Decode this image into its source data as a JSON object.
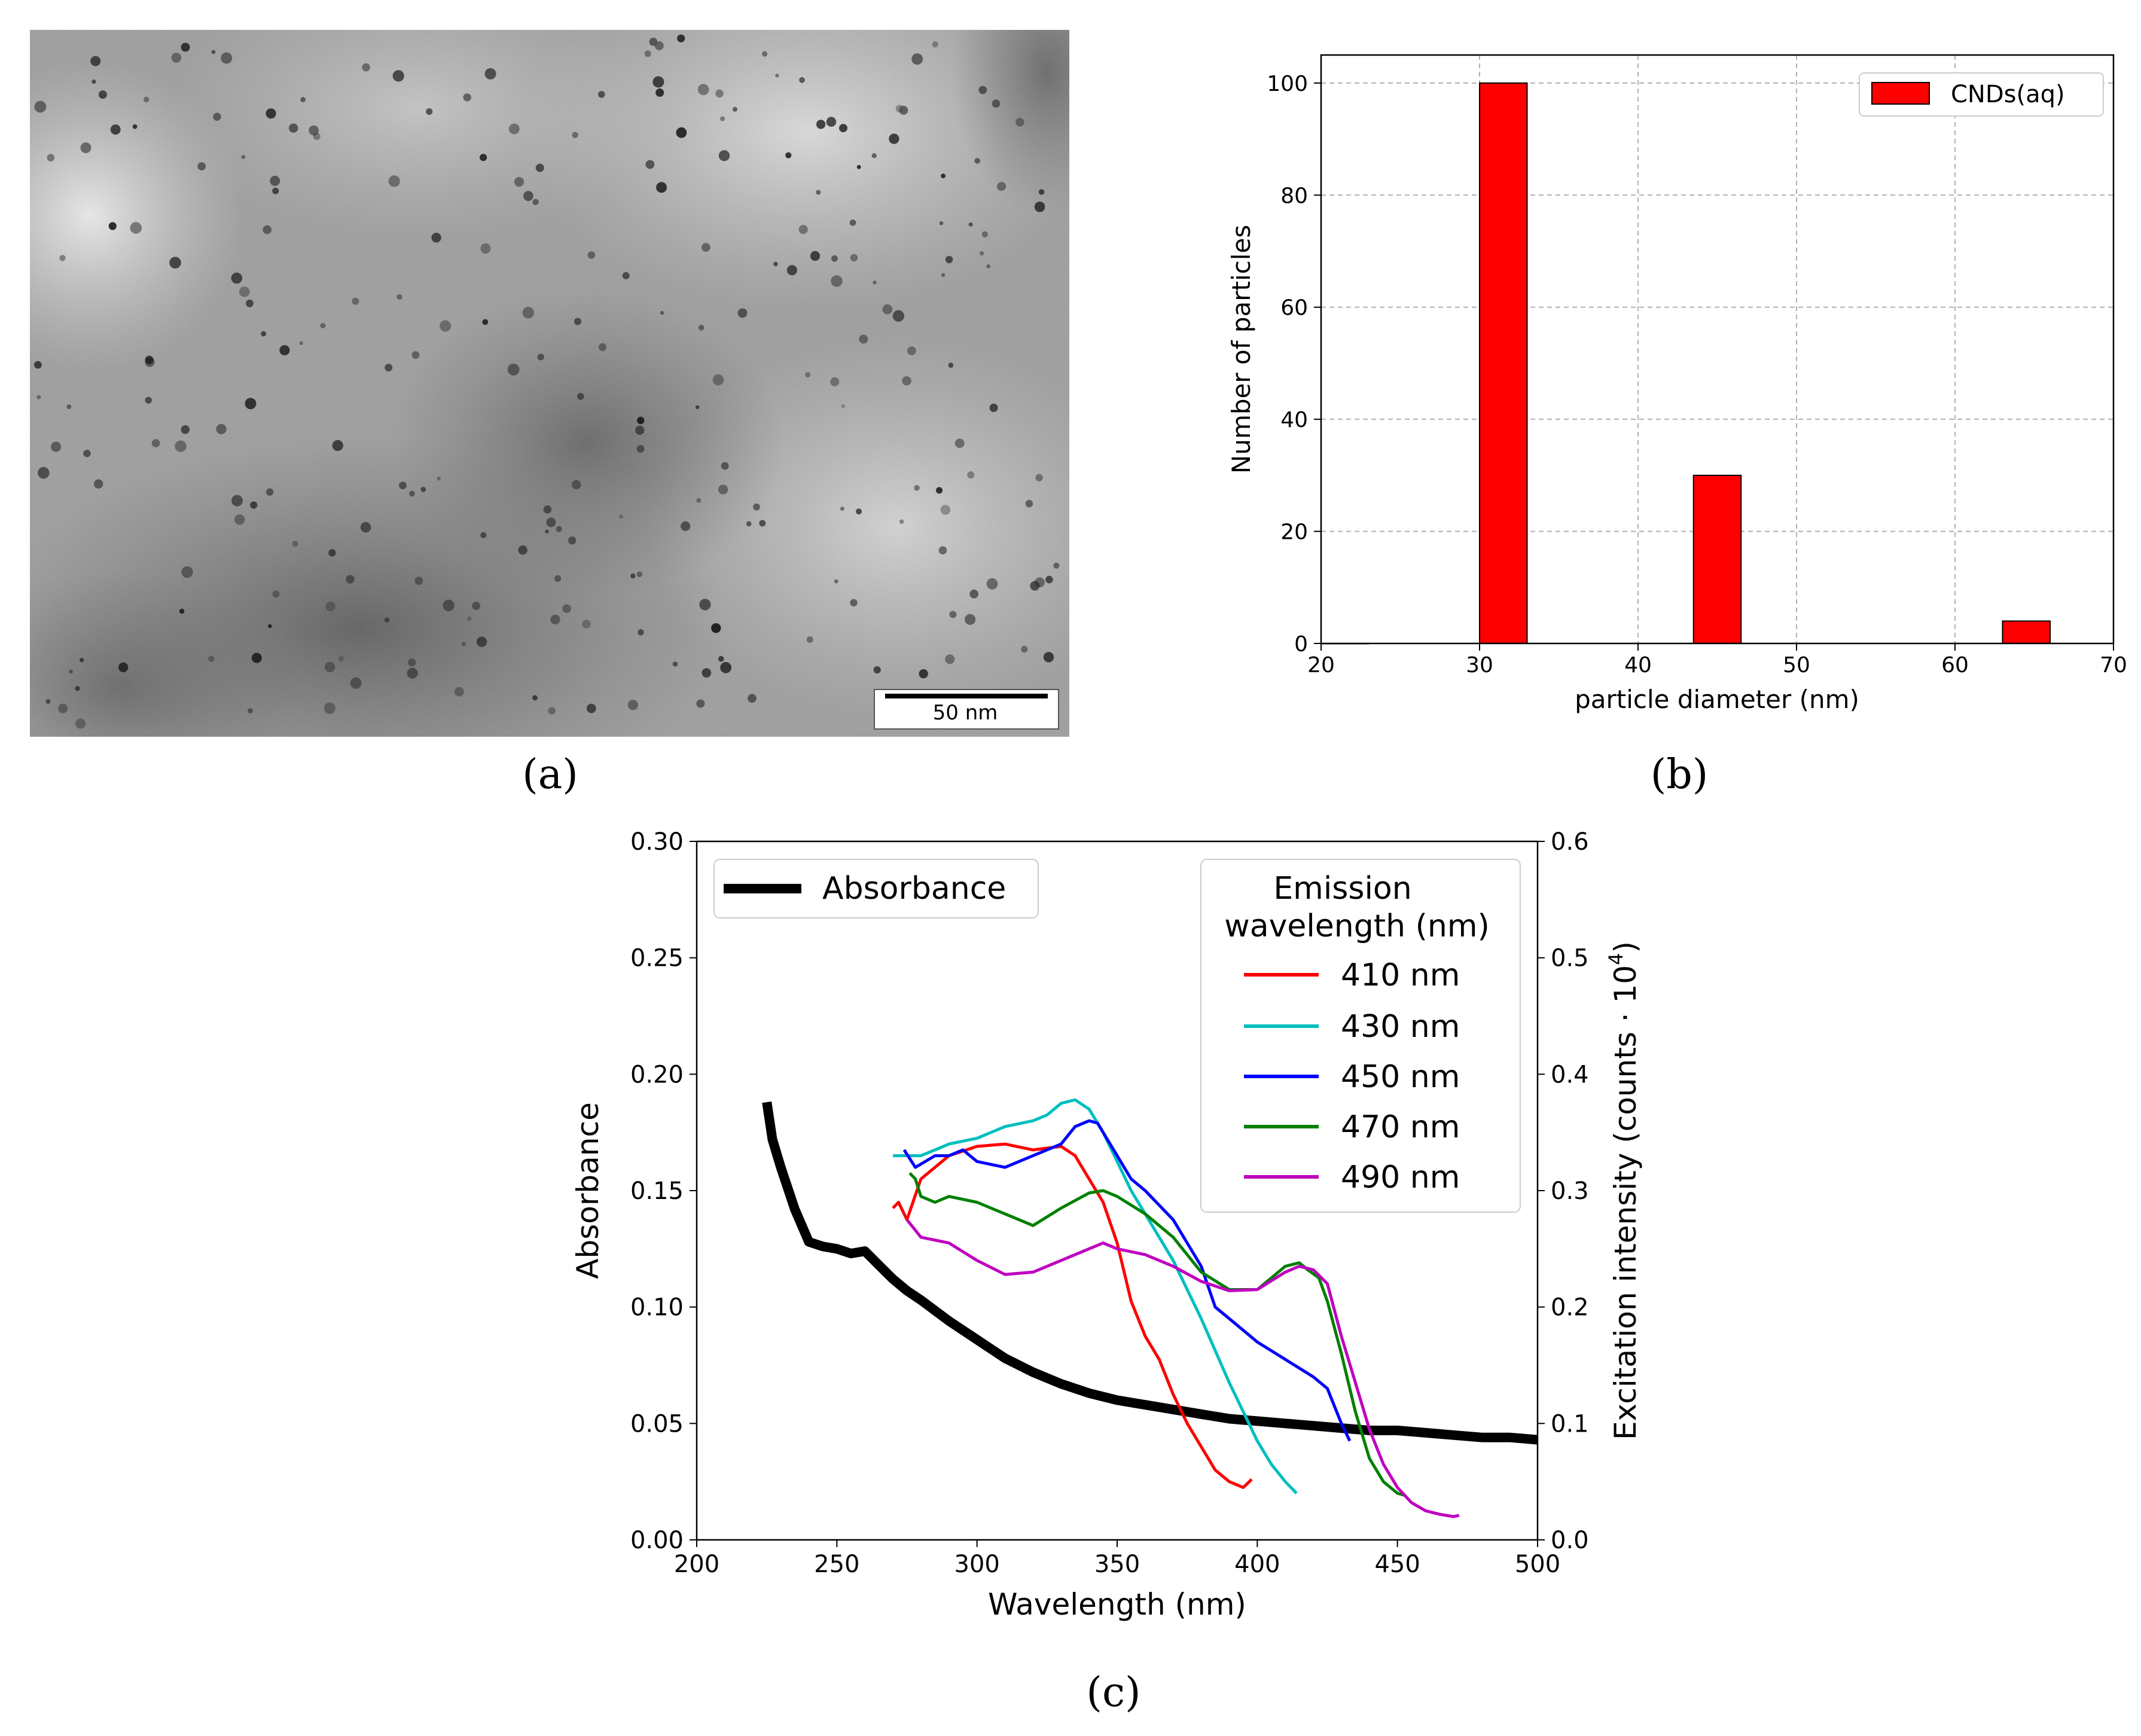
{
  "panels": {
    "a": {
      "caption": "(a)",
      "scale_bar_label": "50 nm"
    },
    "b": {
      "caption": "(b)"
    },
    "c": {
      "caption": "(c)"
    }
  },
  "chart_data": [
    {
      "type": "bar",
      "panel": "b",
      "title": "",
      "xlabel": "particle diameter (nm)",
      "ylabel": "Number of particles",
      "xlim": [
        20,
        70
      ],
      "ylim": [
        0,
        105
      ],
      "xticks": [
        20,
        30,
        40,
        50,
        60,
        70
      ],
      "yticks": [
        0,
        20,
        40,
        60,
        80,
        100
      ],
      "grid": true,
      "legend": {
        "position": "top-right",
        "entries": [
          "CNDs(aq)"
        ]
      },
      "bar_color": "#ff0000",
      "bins": [
        {
          "left": 20,
          "right": 23,
          "value": 0
        },
        {
          "left": 30,
          "right": 33,
          "value": 100
        },
        {
          "left": 43.5,
          "right": 46.5,
          "value": 30
        },
        {
          "left": 63,
          "right": 66,
          "value": 4
        }
      ]
    },
    {
      "type": "line",
      "panel": "c",
      "title": "",
      "xlabel": "Wavelength (nm)",
      "ylabel": "Absorbance",
      "ylabel_right": "Excitation intensity (counts · 10",
      "ylabel_right_sup": "4",
      "ylabel_right_end": ")",
      "xlim": [
        200,
        500
      ],
      "ylim": [
        0,
        0.3
      ],
      "ylim_right": [
        0,
        0.6
      ],
      "xticks": [
        200,
        250,
        300,
        350,
        400,
        450,
        500
      ],
      "yticks": [
        "0.00",
        "0.05",
        "0.10",
        "0.15",
        "0.20",
        "0.25",
        "0.30"
      ],
      "yticks_right": [
        "0.0",
        "0.1",
        "0.2",
        "0.3",
        "0.4",
        "0.5",
        "0.6"
      ],
      "legend_left": {
        "position": "top-left",
        "entries": [
          "Absorbance"
        ]
      },
      "legend_right": {
        "position": "top-right",
        "title_line1": "Emission",
        "title_line2": "wavelength (nm)",
        "entries": [
          "410 nm",
          "430 nm",
          "450 nm",
          "470 nm",
          "490 nm"
        ]
      },
      "series": [
        {
          "name": "Absorbance",
          "axis": "left",
          "color": "#000000",
          "width": "thick",
          "x": [
            225,
            227,
            230,
            235,
            240,
            245,
            250,
            255,
            260,
            265,
            270,
            275,
            280,
            290,
            300,
            310,
            320,
            330,
            340,
            350,
            360,
            370,
            380,
            390,
            400,
            410,
            420,
            430,
            440,
            450,
            460,
            470,
            480,
            490,
            500
          ],
          "y": [
            0.188,
            0.172,
            0.16,
            0.142,
            0.128,
            0.126,
            0.125,
            0.123,
            0.124,
            0.118,
            0.112,
            0.107,
            0.103,
            0.094,
            0.086,
            0.078,
            0.072,
            0.067,
            0.063,
            0.06,
            0.058,
            0.056,
            0.054,
            0.052,
            0.051,
            0.05,
            0.049,
            0.048,
            0.047,
            0.047,
            0.046,
            0.045,
            0.044,
            0.044,
            0.043
          ]
        },
        {
          "name": "410 nm",
          "axis": "right",
          "color": "#ff0000",
          "x": [
            270,
            272,
            275,
            280,
            285,
            290,
            300,
            310,
            320,
            330,
            335,
            340,
            345,
            350,
            355,
            360,
            365,
            370,
            375,
            380,
            385,
            390,
            395,
            398
          ],
          "y": [
            0.285,
            0.29,
            0.275,
            0.31,
            0.32,
            0.33,
            0.338,
            0.34,
            0.335,
            0.338,
            0.33,
            0.31,
            0.29,
            0.255,
            0.205,
            0.175,
            0.155,
            0.125,
            0.1,
            0.08,
            0.06,
            0.05,
            0.045,
            0.052
          ]
        },
        {
          "name": "430 nm",
          "axis": "right",
          "color": "#00bfbf",
          "x": [
            270,
            275,
            280,
            285,
            290,
            300,
            310,
            320,
            325,
            330,
            335,
            340,
            345,
            350,
            355,
            360,
            365,
            370,
            380,
            390,
            400,
            405,
            410,
            414
          ],
          "y": [
            0.33,
            0.33,
            0.33,
            0.335,
            0.34,
            0.345,
            0.355,
            0.36,
            0.365,
            0.375,
            0.378,
            0.37,
            0.35,
            0.325,
            0.3,
            0.28,
            0.26,
            0.24,
            0.19,
            0.135,
            0.085,
            0.065,
            0.05,
            0.04
          ]
        },
        {
          "name": "450 nm",
          "axis": "right",
          "color": "#0000ff",
          "x": [
            274,
            278,
            285,
            290,
            295,
            300,
            310,
            320,
            330,
            335,
            340,
            343,
            350,
            355,
            360,
            370,
            380,
            385,
            390,
            400,
            410,
            420,
            425,
            430,
            433
          ],
          "y": [
            0.335,
            0.32,
            0.33,
            0.33,
            0.335,
            0.325,
            0.32,
            0.33,
            0.34,
            0.355,
            0.36,
            0.358,
            0.33,
            0.31,
            0.3,
            0.275,
            0.235,
            0.2,
            0.19,
            0.17,
            0.155,
            0.14,
            0.13,
            0.1,
            0.085
          ]
        },
        {
          "name": "470 nm",
          "axis": "right",
          "color": "#008000",
          "x": [
            276,
            278,
            280,
            285,
            290,
            300,
            310,
            320,
            330,
            340,
            345,
            350,
            360,
            370,
            380,
            390,
            400,
            405,
            410,
            415,
            418,
            422,
            425,
            430,
            435,
            440,
            445,
            450,
            453
          ],
          "y": [
            0.315,
            0.31,
            0.295,
            0.29,
            0.295,
            0.29,
            0.28,
            0.27,
            0.285,
            0.298,
            0.3,
            0.295,
            0.28,
            0.26,
            0.23,
            0.215,
            0.215,
            0.225,
            0.235,
            0.238,
            0.232,
            0.225,
            0.205,
            0.16,
            0.11,
            0.07,
            0.05,
            0.04,
            0.038
          ]
        },
        {
          "name": "490 nm",
          "axis": "right",
          "color": "#bf00bf",
          "x": [
            275,
            280,
            290,
            300,
            310,
            320,
            330,
            340,
            345,
            350,
            360,
            370,
            380,
            390,
            400,
            410,
            415,
            420,
            425,
            430,
            435,
            440,
            445,
            450,
            455,
            460,
            465,
            470,
            472
          ],
          "y": [
            0.275,
            0.26,
            0.255,
            0.24,
            0.228,
            0.23,
            0.24,
            0.25,
            0.255,
            0.25,
            0.245,
            0.235,
            0.222,
            0.214,
            0.215,
            0.23,
            0.235,
            0.232,
            0.22,
            0.175,
            0.135,
            0.095,
            0.065,
            0.045,
            0.032,
            0.025,
            0.022,
            0.02,
            0.021
          ]
        }
      ]
    }
  ]
}
